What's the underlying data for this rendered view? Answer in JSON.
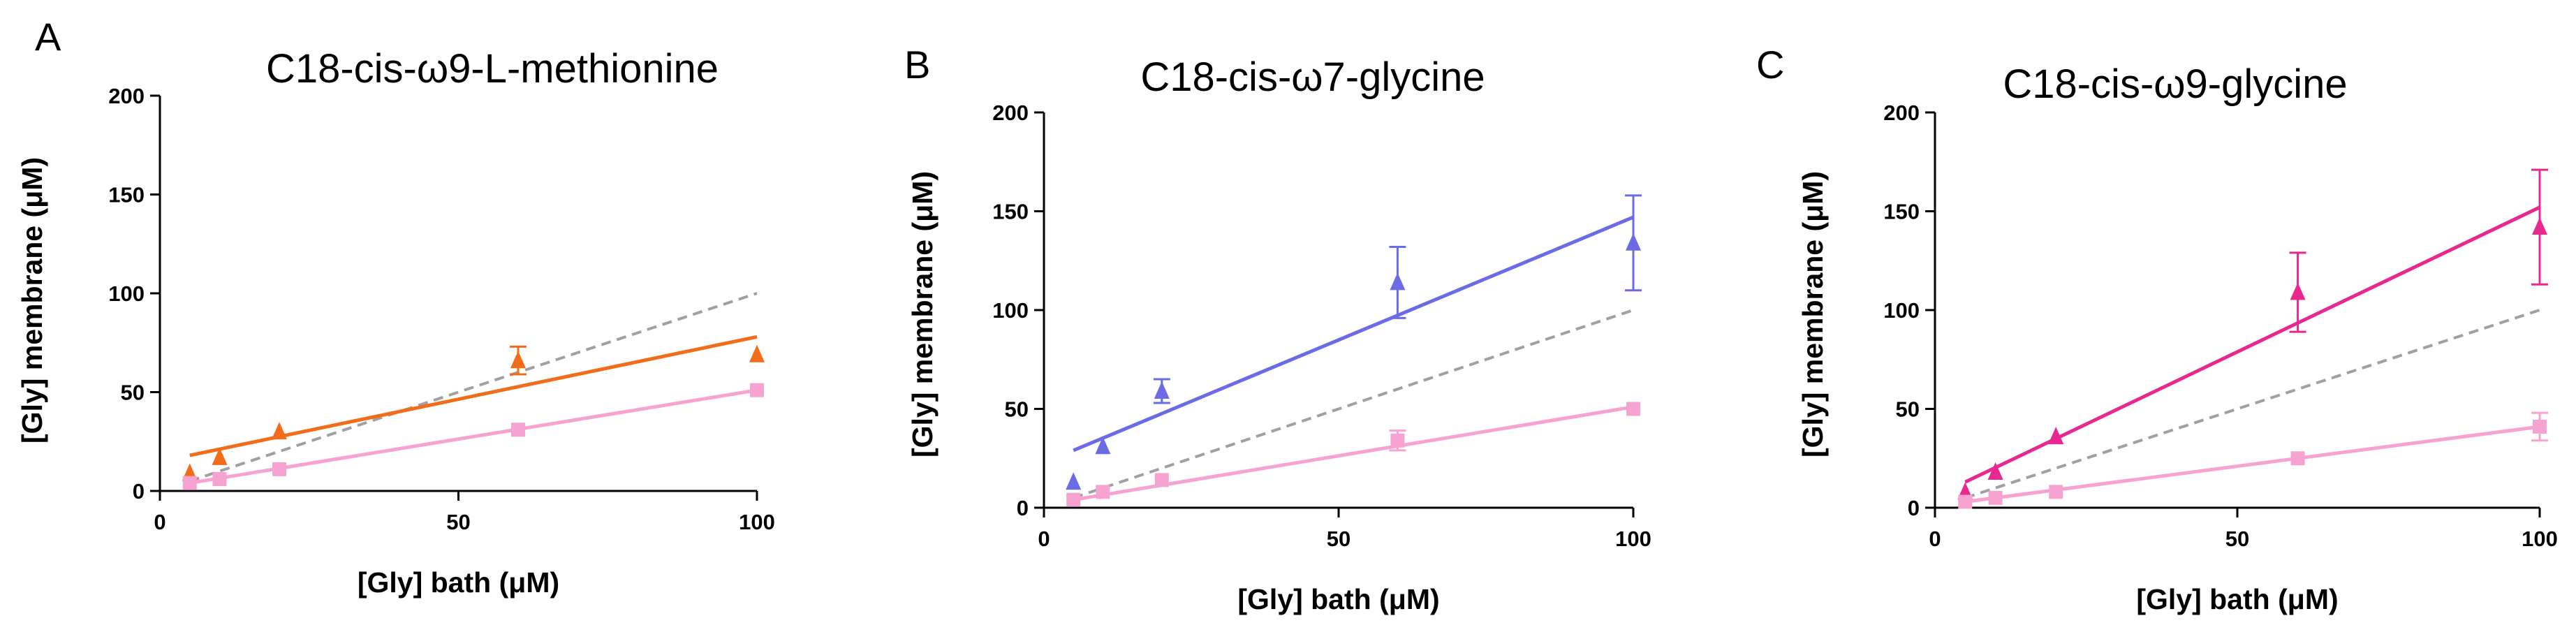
{
  "chart_data": [
    {
      "type": "scatter",
      "panel": "A",
      "title": "C18-cis-ω9-L-methionine",
      "xlabel": "[Gly] bath (μM)",
      "ylabel": "[Gly] membrane (μM)",
      "xlim": [
        0,
        100
      ],
      "ylim": [
        0,
        200
      ],
      "xticks": [
        0,
        50,
        100
      ],
      "yticks": [
        0,
        50,
        100,
        150,
        200
      ],
      "series": [
        {
          "name": "triangle series",
          "marker": "triangle",
          "color": "#f26c1a",
          "x": [
            5,
            10,
            20,
            60,
            100
          ],
          "y": [
            9,
            17,
            30,
            66,
            69
          ],
          "err": [
            0,
            0,
            0,
            7,
            0
          ],
          "fit": [
            [
              5,
              18
            ],
            [
              100,
              78
            ]
          ]
        },
        {
          "name": "square series",
          "marker": "square",
          "color": "#f7a3d2",
          "x": [
            5,
            10,
            20,
            60,
            100
          ],
          "y": [
            4,
            6,
            11,
            31,
            51
          ],
          "err": [
            0,
            0,
            0,
            0,
            0
          ],
          "fit": [
            [
              5,
              4
            ],
            [
              100,
              51
            ]
          ]
        }
      ],
      "reference_line": {
        "color": "#a0a0a0",
        "from": [
          5,
          5
        ],
        "to": [
          100,
          100
        ]
      }
    },
    {
      "type": "scatter",
      "panel": "B",
      "title": "C18-cis-ω7-glycine",
      "xlabel": "[Gly] bath (μM)",
      "ylabel": "[Gly] membrane (μM)",
      "xlim": [
        0,
        100
      ],
      "ylim": [
        0,
        200
      ],
      "xticks": [
        0,
        50,
        100
      ],
      "yticks": [
        0,
        50,
        100,
        150,
        200
      ],
      "series": [
        {
          "name": "triangle series",
          "marker": "triangle",
          "color": "#6b6be6",
          "x": [
            5,
            10,
            20,
            60,
            100
          ],
          "y": [
            13,
            31,
            59,
            114,
            134
          ],
          "err": [
            0,
            0,
            6,
            18,
            24
          ],
          "fit": [
            [
              5,
              29
            ],
            [
              100,
              147
            ]
          ]
        },
        {
          "name": "square series",
          "marker": "square",
          "color": "#f7a3d2",
          "x": [
            5,
            10,
            20,
            60,
            100
          ],
          "y": [
            4,
            8,
            14,
            34,
            50
          ],
          "err": [
            0,
            0,
            0,
            5,
            0
          ],
          "fit": [
            [
              5,
              4
            ],
            [
              100,
              51
            ]
          ]
        }
      ],
      "reference_line": {
        "color": "#a0a0a0",
        "from": [
          5,
          5
        ],
        "to": [
          100,
          100
        ]
      }
    },
    {
      "type": "scatter",
      "panel": "C",
      "title": "C18-cis-ω9-glycine",
      "xlabel": "[Gly] bath (μM)",
      "ylabel": "[Gly] membrane (μM)",
      "xlim": [
        0,
        100
      ],
      "ylim": [
        0,
        200
      ],
      "xticks": [
        0,
        50,
        100
      ],
      "yticks": [
        0,
        50,
        100,
        150,
        200
      ],
      "series": [
        {
          "name": "triangle series",
          "marker": "triangle",
          "color": "#e8288f",
          "x": [
            5,
            10,
            20,
            60,
            100
          ],
          "y": [
            8,
            18,
            36,
            109,
            142
          ],
          "err": [
            0,
            0,
            0,
            20,
            29
          ],
          "fit": [
            [
              5,
              13
            ],
            [
              100,
              152
            ]
          ]
        },
        {
          "name": "square series",
          "marker": "square",
          "color": "#f7a3d2",
          "x": [
            5,
            10,
            20,
            60,
            100
          ],
          "y": [
            3,
            5,
            8,
            25,
            41
          ],
          "err": [
            0,
            0,
            0,
            0,
            7
          ],
          "fit": [
            [
              5,
              3
            ],
            [
              100,
              41
            ]
          ]
        }
      ],
      "reference_line": {
        "color": "#a0a0a0",
        "from": [
          5,
          5
        ],
        "to": [
          100,
          100
        ]
      }
    }
  ]
}
